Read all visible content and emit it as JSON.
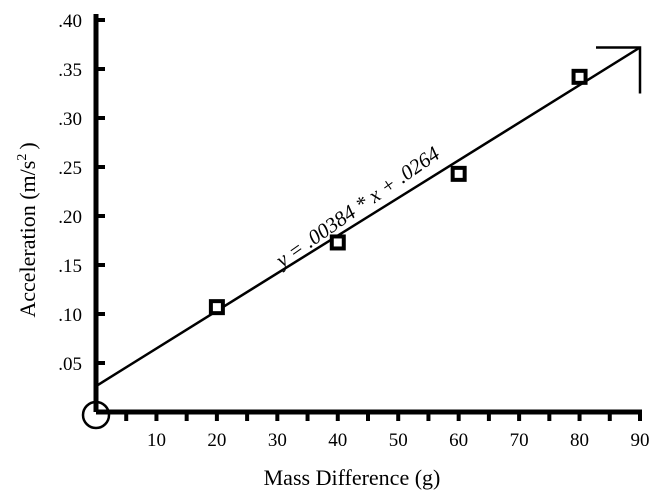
{
  "chart_data": {
    "type": "scatter",
    "xlabel": "Mass Difference (g)",
    "ylabel": "Acceleration (m/s",
    "ylabel_sup": "2",
    "ylabel_close": ")",
    "xlim": [
      0,
      90
    ],
    "ylim": [
      0,
      0.4
    ],
    "x_ticks": [
      "10",
      "20",
      "30",
      "40",
      "50",
      "60",
      "70",
      "80",
      "90"
    ],
    "y_ticks": [
      ".05",
      ".10",
      ".15",
      ".20",
      ".25",
      ".30",
      ".35",
      ".40"
    ],
    "grid": false,
    "points": [
      {
        "x": 20,
        "y": 0.107
      },
      {
        "x": 40,
        "y": 0.173
      },
      {
        "x": 60,
        "y": 0.243
      },
      {
        "x": 80,
        "y": 0.342
      }
    ],
    "fit": {
      "slope": 0.00384,
      "intercept": 0.0264,
      "x_end": 90
    },
    "equation_label": "y = .00384 * x  + .0264"
  }
}
